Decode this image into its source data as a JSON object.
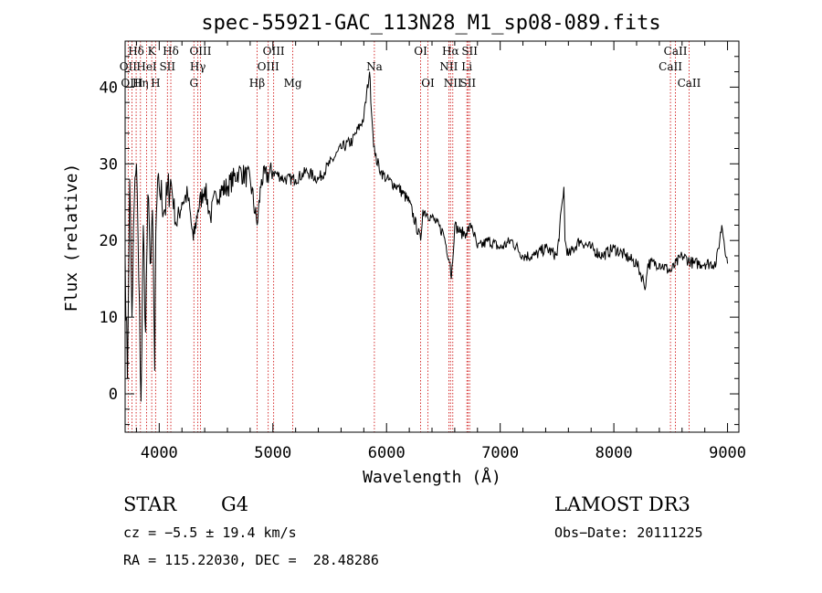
{
  "chart_data": {
    "type": "line",
    "title": "spec-55921-GAC_113N28_M1_sp08-089.fits",
    "xlabel": "Wavelength (Å)",
    "ylabel": "Flux (relative)",
    "xlim": [
      3700,
      9100
    ],
    "ylim": [
      -5,
      46
    ],
    "xticks": [
      4000,
      5000,
      6000,
      7000,
      8000,
      9000
    ],
    "yticks": [
      0,
      10,
      20,
      30,
      40
    ],
    "series": [
      {
        "name": "flux",
        "x": [
          3700,
          3720,
          3740,
          3760,
          3780,
          3800,
          3820,
          3840,
          3860,
          3880,
          3900,
          3920,
          3940,
          3960,
          3970,
          3980,
          4000,
          4050,
          4100,
          4150,
          4200,
          4250,
          4300,
          4340,
          4400,
          4450,
          4500,
          4600,
          4700,
          4800,
          4861,
          4900,
          5000,
          5100,
          5200,
          5300,
          5400,
          5500,
          5600,
          5700,
          5800,
          5850,
          5880,
          5900,
          5950,
          6000,
          6100,
          6200,
          6300,
          6320,
          6400,
          6500,
          6560,
          6570,
          6600,
          6650,
          6700,
          6750,
          6800,
          6900,
          7000,
          7100,
          7200,
          7300,
          7400,
          7500,
          7560,
          7570,
          7600,
          7700,
          7800,
          7900,
          8000,
          8100,
          8200,
          8280,
          8300,
          8400,
          8500,
          8600,
          8700,
          8800,
          8900,
          8950,
          9000
        ],
        "y": [
          18,
          2,
          28,
          10,
          25,
          30,
          15,
          -1,
          22,
          8,
          26,
          17,
          24,
          3,
          21,
          25,
          27,
          24,
          28,
          22,
          25,
          26,
          20,
          24,
          27,
          23,
          26,
          27,
          29,
          28,
          22,
          28,
          29,
          28,
          28,
          29,
          28,
          30,
          32,
          33,
          36,
          42,
          34,
          31,
          29,
          28,
          27,
          25,
          20,
          24,
          23,
          21,
          17,
          15,
          22,
          21,
          21,
          22,
          19,
          20,
          19,
          20,
          18,
          18,
          19,
          18,
          27,
          20,
          18,
          20,
          19,
          18,
          19,
          18,
          17,
          14,
          17,
          17,
          16,
          18,
          17,
          17,
          17,
          22,
          17
        ]
      }
    ],
    "grid": false
  },
  "spectral_lines": {
    "top_row": [
      {
        "label": "Hδ",
        "wavelength": 3797
      },
      {
        "label": "K",
        "wavelength": 3934
      },
      {
        "label": "Hδ",
        "wavelength": 4102
      },
      {
        "label": "OIII",
        "wavelength": 4363
      },
      {
        "label": "OIII",
        "wavelength": 5007
      },
      {
        "label": "OI",
        "wavelength": 6300
      },
      {
        "label": "Hα",
        "wavelength": 6563
      },
      {
        "label": "SII",
        "wavelength": 6731
      },
      {
        "label": "CaII",
        "wavelength": 8542
      }
    ],
    "mid_row": [
      {
        "label": "OII",
        "wavelength": 3727
      },
      {
        "label": "HeI",
        "wavelength": 3889
      },
      {
        "label": "SII",
        "wavelength": 4072
      },
      {
        "label": "Hγ",
        "wavelength": 4340
      },
      {
        "label": "OIII",
        "wavelength": 4959
      },
      {
        "label": "Na",
        "wavelength": 5893
      },
      {
        "label": "NII",
        "wavelength": 6548
      },
      {
        "label": "Li",
        "wavelength": 6707
      },
      {
        "label": "CaII",
        "wavelength": 8498
      }
    ],
    "low_row": [
      {
        "label": "OIII",
        "wavelength": 3760
      },
      {
        "label": "Hη",
        "wavelength": 3835
      },
      {
        "label": "H",
        "wavelength": 3968
      },
      {
        "label": "G",
        "wavelength": 4305
      },
      {
        "label": "Hβ",
        "wavelength": 4861
      },
      {
        "label": "Mg",
        "wavelength": 5175
      },
      {
        "label": "OI",
        "wavelength": 6364
      },
      {
        "label": "NII",
        "wavelength": 6583
      },
      {
        "label": "SII",
        "wavelength": 6716
      },
      {
        "label": "CaII",
        "wavelength": 8662
      }
    ]
  },
  "info": {
    "object_class": "STAR",
    "subclass": "G4",
    "survey": "LAMOST DR3",
    "cz": "cz = −5.5 ± 19.4 km/s",
    "obs_date": "Obs−Date: 20111225",
    "coords": "RA = 115.22030, DEC =  28.48286"
  },
  "colors": {
    "line_marker": "#cc0000",
    "spectrum": "#000000",
    "axes": "#000000"
  }
}
